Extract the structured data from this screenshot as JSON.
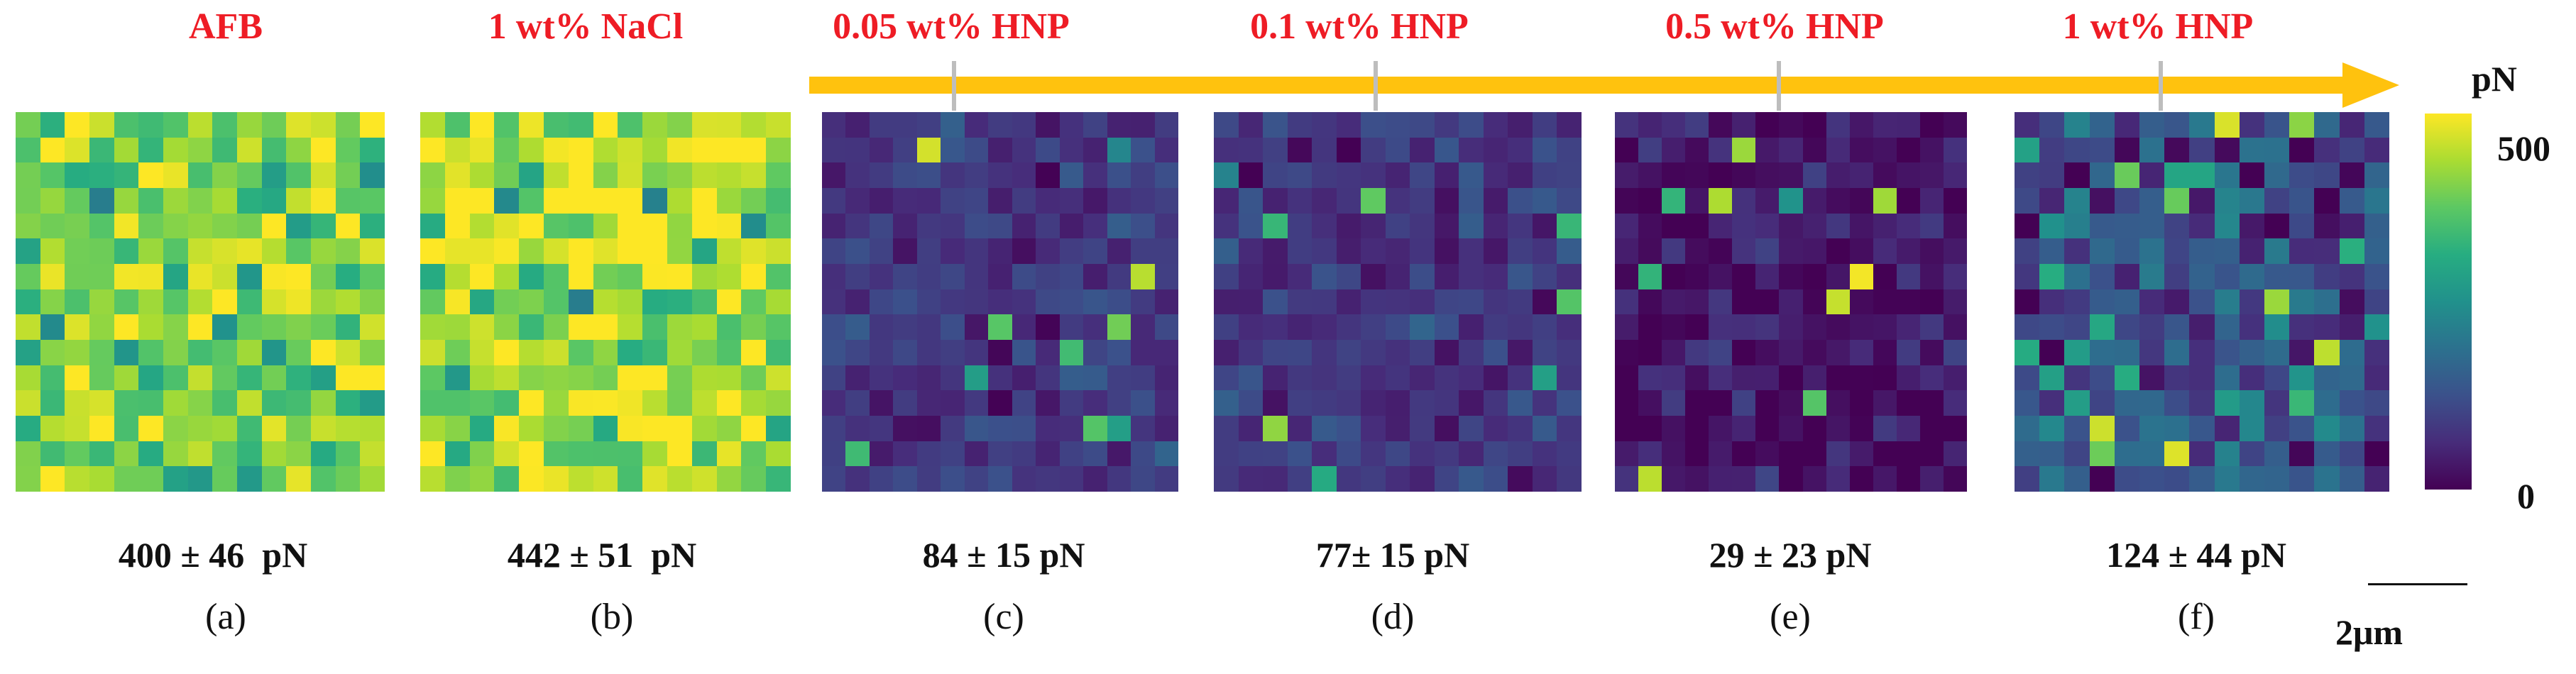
{
  "panels": [
    {
      "title": "AFB",
      "stat": "400 ± 46  pN",
      "sublabel": "(a)",
      "mean_pN": 400,
      "sd_pN": 46
    },
    {
      "title": "1 wt% NaCl",
      "stat": "442 ± 51  pN",
      "sublabel": "(b)",
      "mean_pN": 442,
      "sd_pN": 51
    },
    {
      "title": "0.05 wt% HNP",
      "stat": "84 ± 15 pN",
      "sublabel": "(c)",
      "mean_pN": 84,
      "sd_pN": 15
    },
    {
      "title": "0.1 wt% HNP",
      "stat": "77± 15 pN",
      "sublabel": "(d)",
      "mean_pN": 77,
      "sd_pN": 15
    },
    {
      "title": "0.5 wt% HNP",
      "stat": "29 ± 23 pN",
      "sublabel": "(e)",
      "mean_pN": 29,
      "sd_pN": 23
    },
    {
      "title": "1 wt% HNP",
      "stat": "124 ± 44 pN",
      "sublabel": "(f)",
      "mean_pN": 124,
      "sd_pN": 44
    }
  ],
  "colorbar": {
    "unit": "pN",
    "max_label": "500",
    "min_label": "0",
    "min_value": 0,
    "max_value": 500
  },
  "scalebar": {
    "label": "2μm"
  },
  "colors": {
    "title_red": "#ee1c25",
    "arrow_gold": "#ffc20e",
    "tick_gray": "#bdbdbd",
    "text": "#111111"
  },
  "colormap": "viridis",
  "grid_size": 15
}
